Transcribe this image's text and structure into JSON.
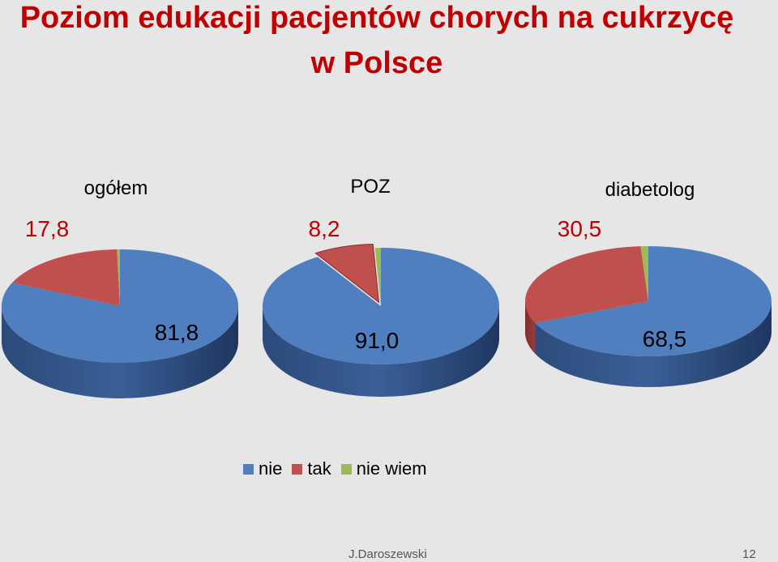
{
  "title_line1": "Poziom edukacji pacjentów chorych na cukrzycę",
  "title_line2": "w Polsce",
  "colors": {
    "nie": "#4f7fbf",
    "tak": "#c0504d",
    "nie_wiem": "#9bbb59"
  },
  "chart_data": [
    {
      "type": "pie",
      "title": "ogółem",
      "categories": [
        "nie",
        "tak",
        "nie wiem"
      ],
      "values": [
        81.8,
        17.8,
        0.4
      ],
      "data_labels": [
        "81,8",
        "17,8",
        ""
      ]
    },
    {
      "type": "pie",
      "title": "POZ",
      "categories": [
        "nie",
        "tak",
        "nie wiem"
      ],
      "values": [
        91.0,
        8.2,
        0.8
      ],
      "data_labels": [
        "91,0",
        "8,2",
        ""
      ]
    },
    {
      "type": "pie",
      "title": "diabetolog",
      "categories": [
        "nie",
        "tak",
        "nie wiem"
      ],
      "values": [
        68.5,
        30.5,
        1.0
      ],
      "data_labels": [
        "68,5",
        "30,5",
        ""
      ]
    }
  ],
  "legend": [
    {
      "label": "nie",
      "color": "#4f7fbf"
    },
    {
      "label": "tak",
      "color": "#c0504d"
    },
    {
      "label": "nie wiem",
      "color": "#9bbb59"
    }
  ],
  "footer": {
    "author": "J.Daroszewski",
    "page": "12"
  }
}
